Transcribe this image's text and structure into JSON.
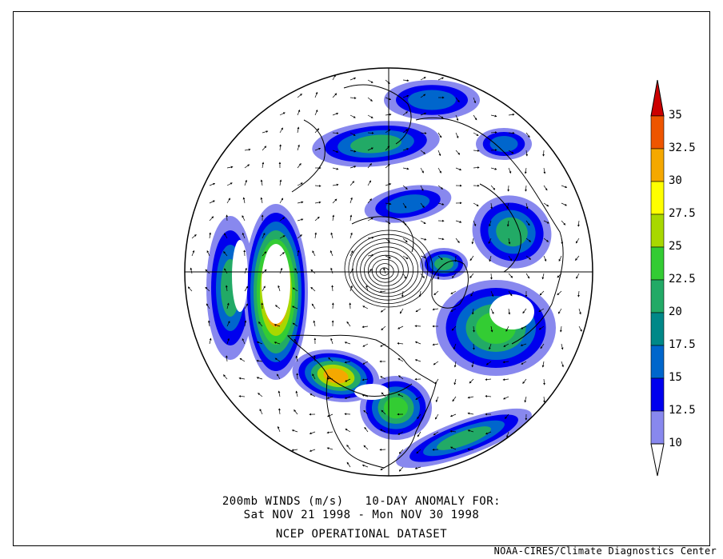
{
  "caption": {
    "line1": "200mb WINDS (m/s)   10-DAY ANOMALY FOR:",
    "line2": "Sat NOV 21 1998 - Mon NOV 30 1998",
    "line3": "NCEP OPERATIONAL DATASET"
  },
  "credit": "NOAA-CIRES/Climate Diagnostics Center",
  "colorbar": {
    "labels": [
      "35",
      "32.5",
      "30",
      "27.5",
      "25",
      "22.5",
      "20",
      "17.5",
      "15",
      "12.5",
      "10"
    ],
    "colors": [
      "#cc0000",
      "#ee5500",
      "#f5a800",
      "#ffff00",
      "#a8d800",
      "#33cc33",
      "#22aa66",
      "#008888",
      "#0066cc",
      "#0000ee",
      "#8888ee"
    ]
  },
  "map": {
    "projection": "north-polar-stereographic",
    "land_outline": "black",
    "wind_vectors": true
  }
}
